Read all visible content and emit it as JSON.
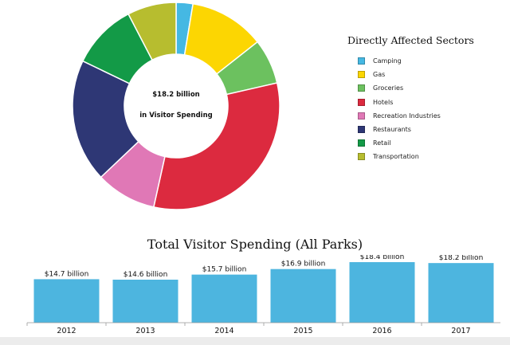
{
  "chart_data": [
    {
      "type": "pie",
      "subtype": "donut",
      "center_text": [
        "$18.2 billion",
        "in Visitor Spending"
      ],
      "legend_title": "Directly Affected Sectors",
      "legend_position": "right",
      "categories": [
        "Camping",
        "Gas",
        "Groceries",
        "Hotels",
        "Recreation Industries",
        "Restaurants",
        "Retail",
        "Transportation"
      ],
      "values": [
        2.7,
        12.2,
        7.3,
        33.2,
        9.8,
        19.9,
        10.6,
        7.9
      ],
      "colors": [
        "#45b8e3",
        "#fcd602",
        "#6cc15f",
        "#dc2a3f",
        "#e078b6",
        "#2e3775",
        "#139a47",
        "#b7bd2f"
      ]
    },
    {
      "type": "bar",
      "title": "Total Visitor Spending (All Parks)",
      "categories": [
        "2012",
        "2013",
        "2014",
        "2015",
        "2016",
        "2017"
      ],
      "values": [
        14.7,
        14.6,
        15.7,
        16.9,
        18.4,
        18.2
      ],
      "data_labels": [
        "$14.7 billion",
        "$14.6 billion",
        "$15.7 billion",
        "$16.9 billion",
        "$18.4 billion",
        "$18.2 billion"
      ],
      "bar_color": "#4db5df",
      "grid": false
    }
  ]
}
